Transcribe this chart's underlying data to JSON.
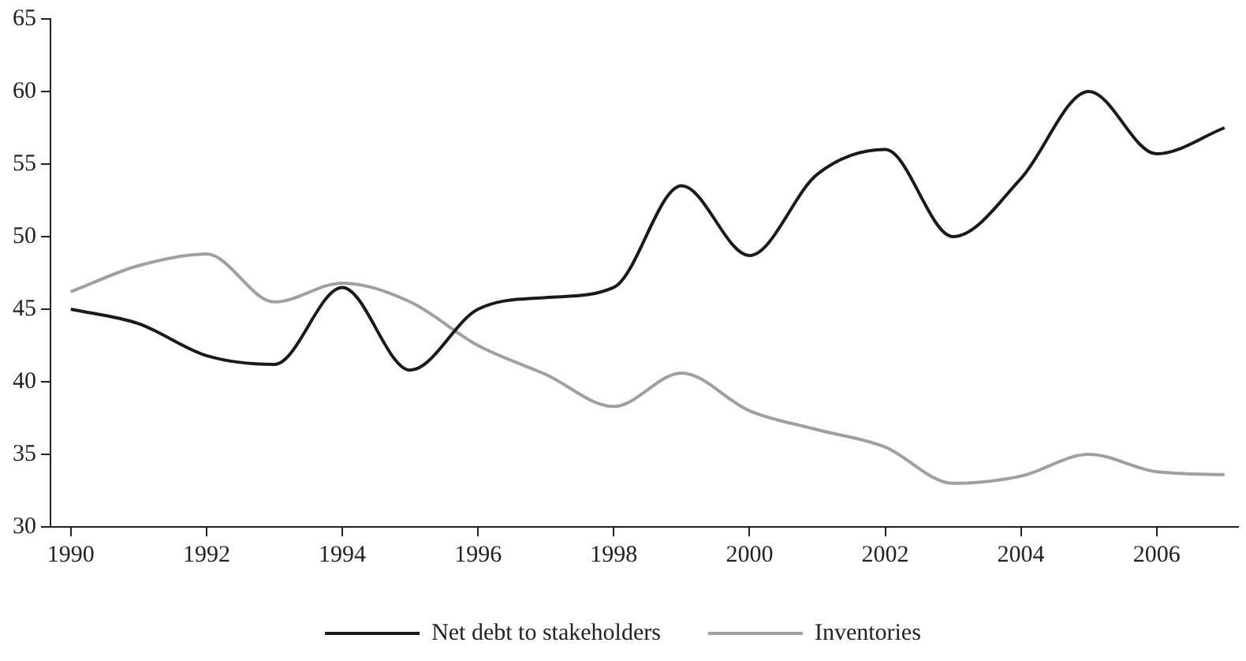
{
  "chart_data": {
    "type": "line",
    "x": [
      1990,
      1991,
      1992,
      1993,
      1994,
      1995,
      1996,
      1997,
      1998,
      1999,
      2000,
      2001,
      2002,
      2003,
      2004,
      2005,
      2006,
      2007
    ],
    "series": [
      {
        "name": "Net debt to stakeholders",
        "color": "#1a1a1a",
        "values": [
          45,
          44,
          41.8,
          41.2,
          46.5,
          40.8,
          45,
          45.8,
          46.5,
          53.5,
          48.7,
          54.3,
          56,
          50,
          54,
          60,
          55.7,
          57.5
        ]
      },
      {
        "name": "Inventories",
        "color": "#a0a0a0",
        "values": [
          46.2,
          48,
          48.8,
          45.5,
          46.8,
          45.5,
          42.5,
          40.5,
          38.3,
          40.6,
          38,
          36.7,
          35.5,
          33,
          33.5,
          35,
          33.8,
          33.6
        ]
      }
    ],
    "xlim": [
      1989.7,
      2007.2
    ],
    "xticks": [
      1990,
      1992,
      1994,
      1996,
      1998,
      2000,
      2002,
      2004,
      2006
    ],
    "ylim": [
      30,
      65
    ],
    "yticks": [
      30,
      35,
      40,
      45,
      50,
      55,
      60,
      65
    ],
    "grid": false,
    "legend": "bottom",
    "marker": "none",
    "line_style": "solid"
  }
}
